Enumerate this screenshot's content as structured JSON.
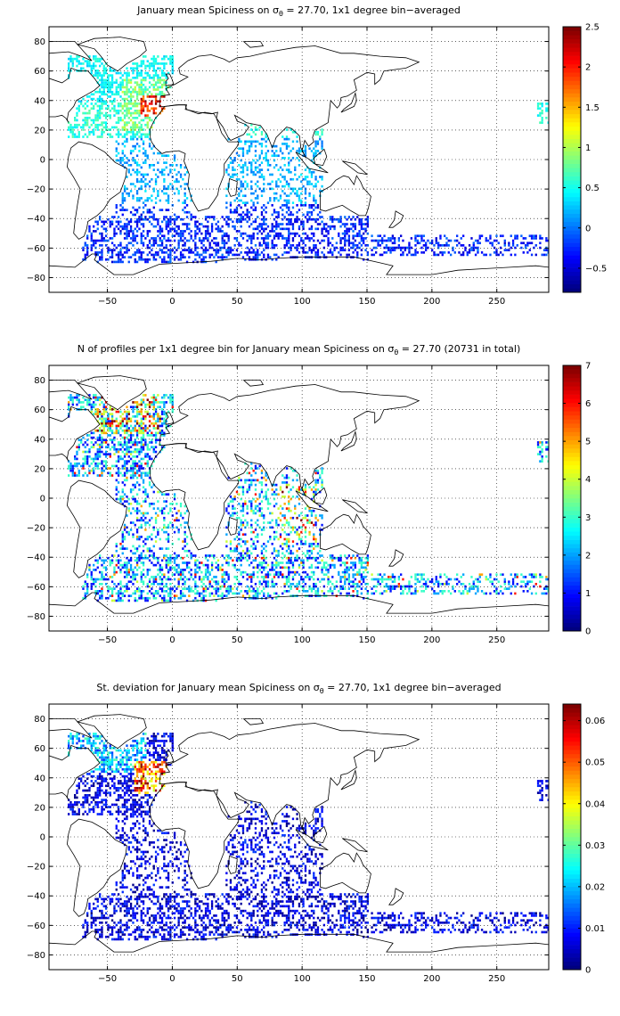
{
  "panels": [
    {
      "title_pre": "January mean Spiciness on σ",
      "title_sub": "θ",
      "title_post": " = 27.70, 1x1 degree bin−averaged",
      "colorbar": {
        "ticks": [
          "2.5",
          "2",
          "1.5",
          "1",
          "0.5",
          "0",
          "−0.5"
        ],
        "min": -0.8,
        "max": 2.5,
        "tick_values": [
          2.5,
          2,
          1.5,
          1,
          0.5,
          0,
          -0.5
        ]
      },
      "field": "spiciness"
    },
    {
      "title_pre": "N of profiles per 1x1 degree bin for January mean Spiciness on σ",
      "title_sub": "θ",
      "title_post": " = 27.70 (20731 in total)",
      "colorbar": {
        "ticks": [
          "7",
          "6",
          "5",
          "4",
          "3",
          "2",
          "1",
          "0"
        ],
        "min": 0,
        "max": 7,
        "tick_values": [
          7,
          6,
          5,
          4,
          3,
          2,
          1,
          0
        ]
      },
      "field": "count"
    },
    {
      "title_pre": "St. deviation for January mean Spiciness on σ",
      "title_sub": "θ",
      "title_post": " = 27.70, 1x1 degree bin−averaged",
      "colorbar": {
        "ticks": [
          "0.06",
          "0.05",
          "0.04",
          "0.03",
          "0.02",
          "0.01",
          "0"
        ],
        "min": 0,
        "max": 0.064,
        "tick_values": [
          0.06,
          0.05,
          0.04,
          0.03,
          0.02,
          0.01,
          0
        ]
      },
      "field": "stdev"
    }
  ],
  "axes": {
    "x_ticks": [
      "−50",
      "0",
      "50",
      "100",
      "150",
      "200",
      "250"
    ],
    "x_tick_values": [
      -50,
      0,
      50,
      100,
      150,
      200,
      250
    ],
    "y_ticks": [
      "80",
      "60",
      "40",
      "20",
      "0",
      "−20",
      "−40",
      "−60",
      "−80"
    ],
    "y_tick_values": [
      80,
      60,
      40,
      20,
      0,
      -20,
      -40,
      -60,
      -80
    ],
    "xlim": [
      -95,
      290
    ],
    "ylim": [
      -90,
      90
    ],
    "grid": true
  },
  "colormap": "jet"
}
